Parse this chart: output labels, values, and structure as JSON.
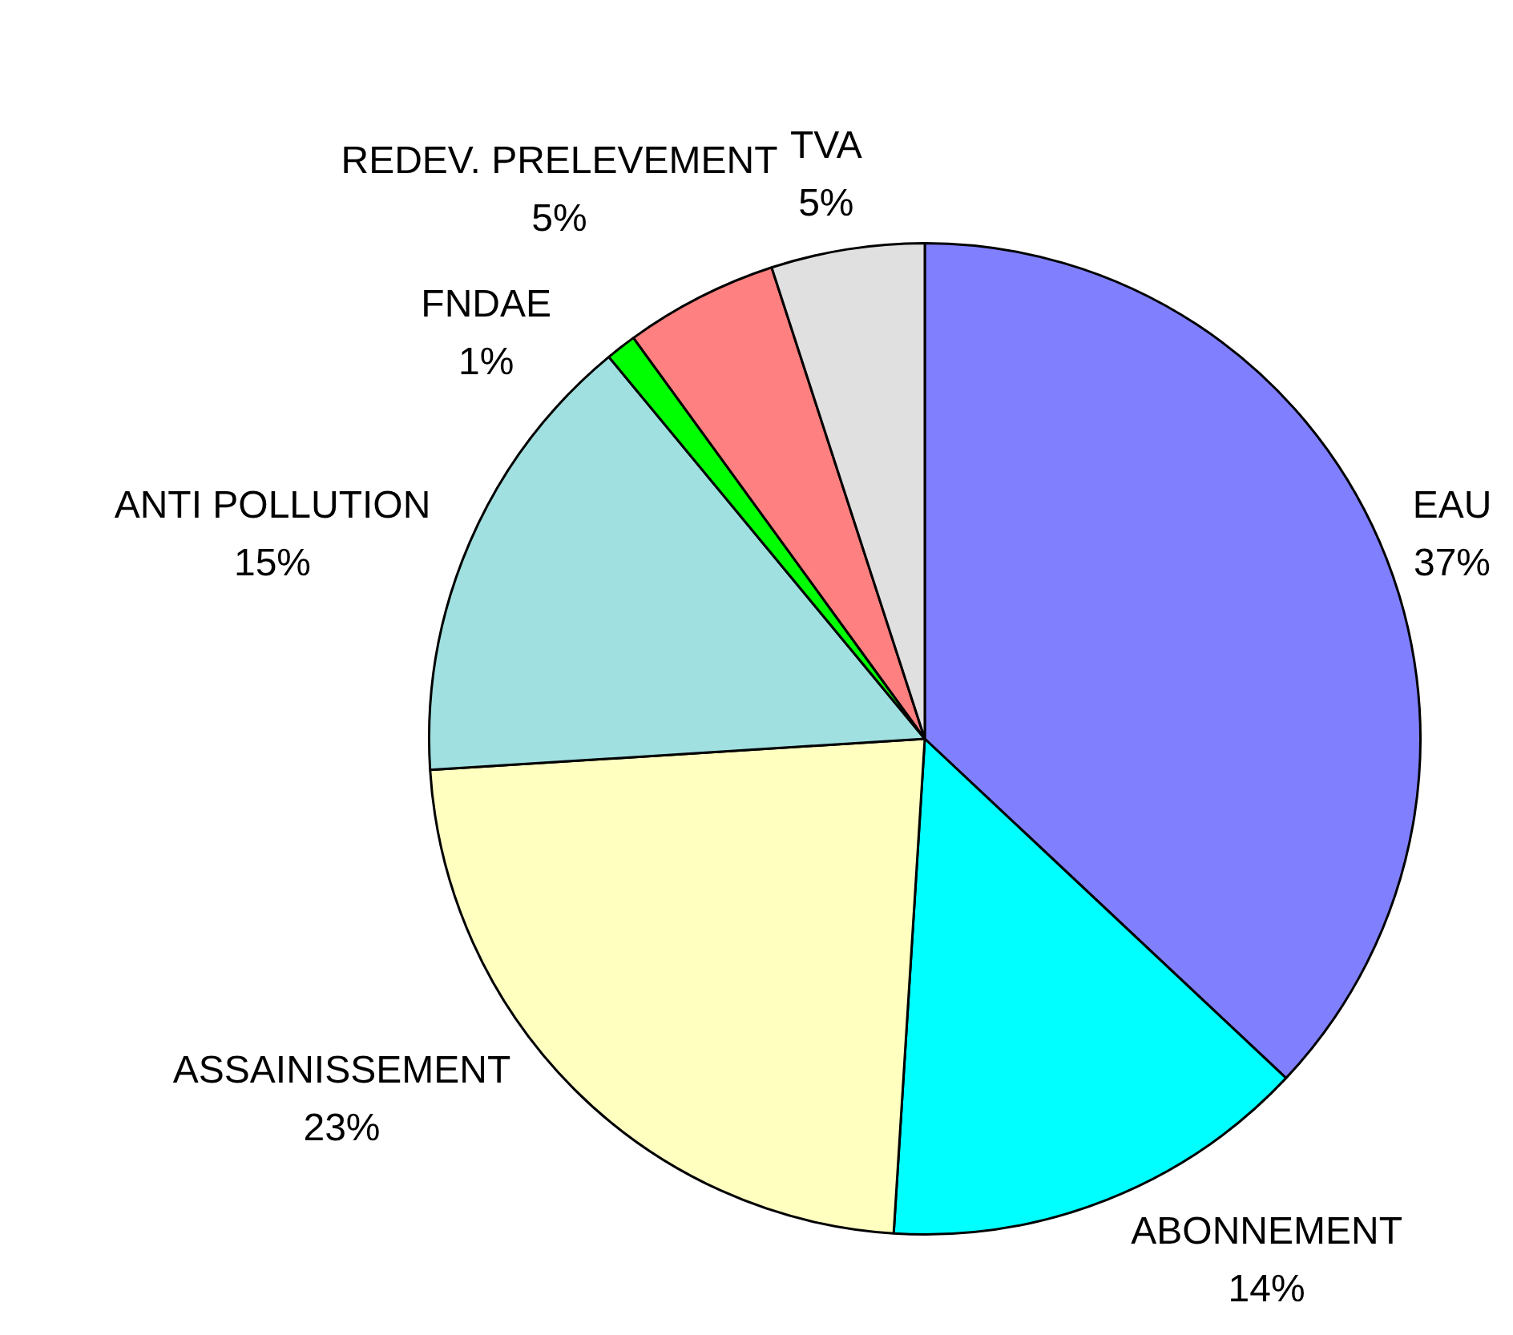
{
  "chart_data": {
    "type": "pie",
    "categories": [
      "EAU",
      "ABONNEMENT",
      "ASSAINISSEMENT",
      "ANTI POLLUTION",
      "FNDAE",
      "REDEV. PRELEVEMENT",
      "TVA"
    ],
    "values": [
      37,
      14,
      23,
      15,
      1,
      5,
      5
    ],
    "colors": [
      "#8080ff",
      "#00ffff",
      "#ffffc0",
      "#a0e0e0",
      "#00ff00",
      "#ff8080",
      "#e0e0e0"
    ],
    "value_labels": [
      "37%",
      "14%",
      "23%",
      "15%",
      "1%",
      "5%",
      "5%"
    ],
    "legend": false
  }
}
